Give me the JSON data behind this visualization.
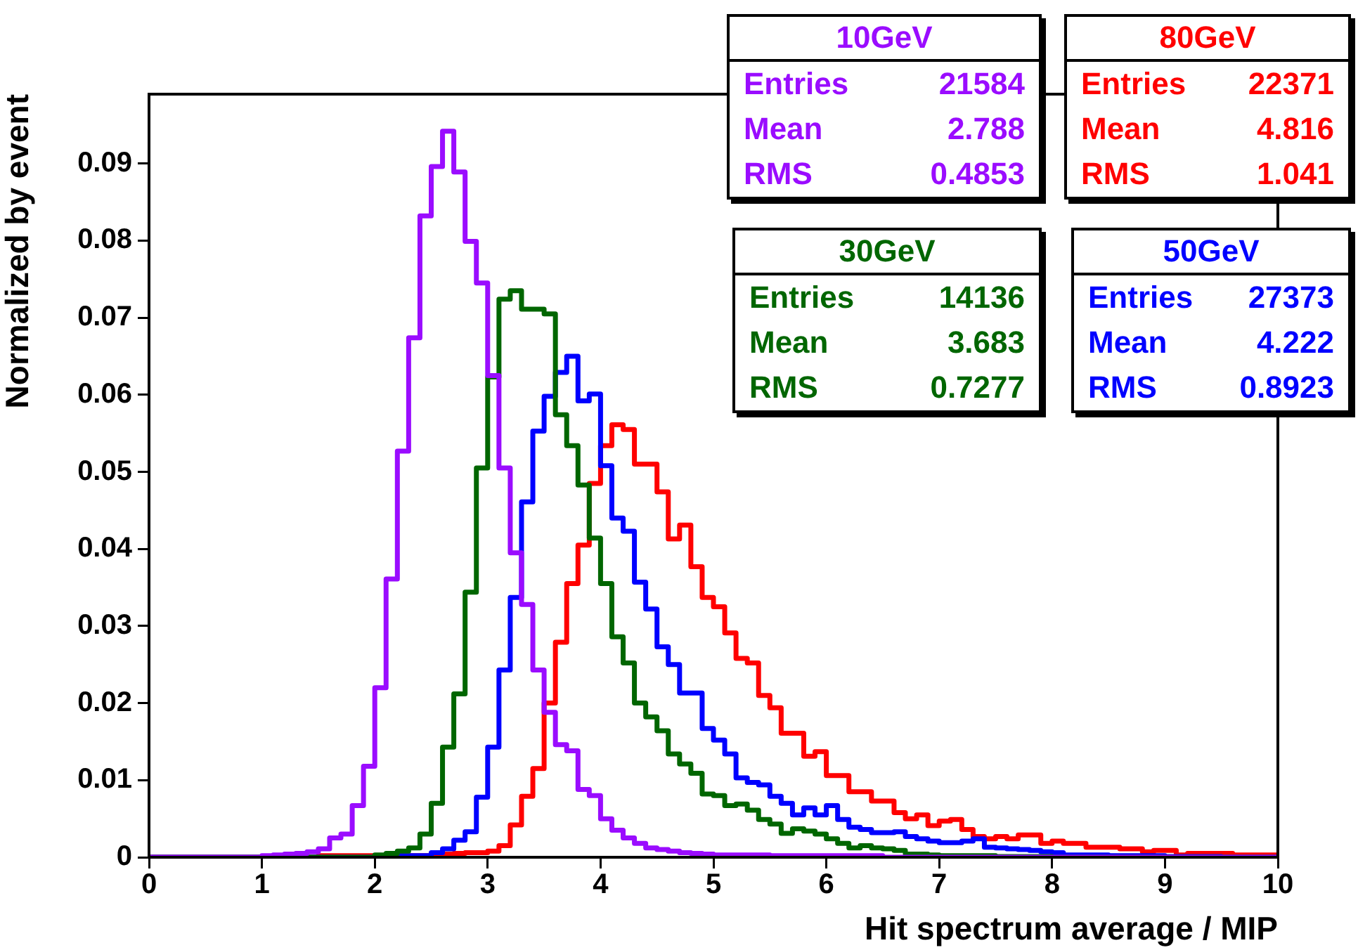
{
  "chart_data": {
    "type": "histogram",
    "xlabel": "Hit spectrum average / MIP",
    "ylabel": "Normalized by event",
    "bins": [
      0,
      0.1,
      0.2,
      0.3,
      0.4,
      0.5,
      0.6,
      0.7,
      0.8,
      0.9,
      1,
      1.1,
      1.2,
      1.3,
      1.4,
      1.5,
      1.6,
      1.7,
      1.8,
      1.9,
      2,
      2.1,
      2.2,
      2.3,
      2.4,
      2.5,
      2.6,
      2.7,
      2.8,
      2.9,
      3,
      3.1,
      3.2,
      3.3,
      3.4,
      3.5,
      3.6,
      3.7,
      3.8,
      3.9,
      4,
      4.1,
      4.2,
      4.3,
      4.4,
      4.5,
      4.6,
      4.7,
      4.8,
      4.9,
      5,
      5.1,
      5.2,
      5.3,
      5.4,
      5.5,
      5.6,
      5.7,
      5.8,
      5.9,
      6,
      6.1,
      6.2,
      6.3,
      6.4,
      6.5,
      6.6,
      6.7,
      6.8,
      6.9,
      7,
      7.1,
      7.2,
      7.3,
      7.4,
      7.5,
      7.6,
      7.7,
      7.8,
      7.9,
      8,
      8.1,
      8.2,
      8.3,
      8.4,
      8.5,
      8.6,
      8.7,
      8.8,
      8.9,
      9,
      9.1,
      9.2,
      9.3,
      9.4,
      9.5,
      9.6,
      9.7,
      9.8,
      9.9,
      10
    ],
    "series": [
      {
        "name": "10GeV",
        "color": "#9a0cff",
        "values": [
          0,
          0,
          0,
          0,
          0,
          0,
          0,
          0,
          0,
          0,
          0.0002,
          0.0003,
          0.0004,
          0.0005,
          0.0007,
          0.0011,
          0.0025,
          0.003,
          0.0067,
          0.0118,
          0.022,
          0.0361,
          0.0527,
          0.0674,
          0.0832,
          0.0896,
          0.0942,
          0.0889,
          0.0799,
          0.0745,
          0.0625,
          0.0505,
          0.0395,
          0.0328,
          0.0243,
          0.0188,
          0.0146,
          0.0138,
          0.0088,
          0.008,
          0.005,
          0.0035,
          0.0025,
          0.0018,
          0.0012,
          0.001,
          0.0008,
          0.0006,
          0.0005,
          0.0004,
          0.0003,
          0.0003,
          0.0003,
          0.0003,
          0.0003,
          0.0002,
          0.0002,
          0.0002,
          0.0002,
          0.0002,
          0.0002,
          0.0002,
          0.0002,
          0.0002,
          0.0002,
          0,
          0,
          0,
          0,
          0,
          0,
          0,
          0,
          0,
          0,
          0,
          0,
          0,
          0,
          0,
          0,
          0,
          0,
          0,
          0,
          0,
          0,
          0,
          0,
          0,
          0,
          0,
          0,
          0,
          0,
          0,
          0,
          0,
          0,
          0
        ]
      },
      {
        "name": "30GeV",
        "color": "#006600",
        "values": [
          0,
          0,
          0,
          0,
          0,
          0,
          0,
          0,
          0,
          0,
          0,
          0,
          0,
          0,
          0,
          0,
          0,
          0,
          0,
          0,
          0.0003,
          0.0005,
          0.0008,
          0.0012,
          0.003,
          0.007,
          0.0143,
          0.0212,
          0.0344,
          0.0505,
          0.0623,
          0.0724,
          0.0735,
          0.0711,
          0.0711,
          0.0705,
          0.0574,
          0.0534,
          0.0483,
          0.0414,
          0.0355,
          0.0286,
          0.0252,
          0.02,
          0.0182,
          0.0164,
          0.0134,
          0.0121,
          0.0109,
          0.0082,
          0.008,
          0.0067,
          0.0069,
          0.0061,
          0.0049,
          0.0043,
          0.0031,
          0.0037,
          0.0034,
          0.003,
          0.0024,
          0.0018,
          0.0012,
          0.0015,
          0.0012,
          0.0011,
          0.0009,
          0.0004,
          0.0004,
          0.0003,
          0.0002,
          0.0002,
          0.0002,
          0.0002,
          0.0002,
          0.0001,
          0.0001,
          0.0001,
          0.0001,
          0.0001,
          0,
          0,
          0,
          0,
          0,
          0,
          0,
          0,
          0,
          0,
          0,
          0,
          0,
          0,
          0,
          0,
          0,
          0,
          0,
          0
        ]
      },
      {
        "name": "50GeV",
        "color": "#0000ff",
        "values": [
          0,
          0,
          0,
          0,
          0,
          0,
          0,
          0,
          0,
          0,
          0,
          0,
          0,
          0,
          0,
          0,
          0,
          0,
          0,
          0,
          0.0002,
          0.0002,
          0.0002,
          0.0002,
          0.0002,
          0.0006,
          0.0011,
          0.0022,
          0.0033,
          0.0078,
          0.0143,
          0.0243,
          0.0337,
          0.0461,
          0.0553,
          0.0598,
          0.0629,
          0.065,
          0.0592,
          0.0601,
          0.0508,
          0.044,
          0.0423,
          0.0357,
          0.0322,
          0.0273,
          0.025,
          0.0213,
          0.0213,
          0.0167,
          0.0152,
          0.0134,
          0.0103,
          0.0097,
          0.0094,
          0.0079,
          0.007,
          0.0055,
          0.0064,
          0.0055,
          0.0067,
          0.0049,
          0.0039,
          0.0036,
          0.0032,
          0.0032,
          0.0033,
          0.0027,
          0.0024,
          0.0021,
          0.0019,
          0.0019,
          0.0021,
          0.0024,
          0.0013,
          0.0012,
          0.0011,
          0.001,
          0.0009,
          0.0007,
          0.0006,
          0.0003,
          0.0003,
          0.0003,
          0.0003,
          0.0002,
          0.0002,
          0.0002,
          0.0002,
          0.0002,
          0.0001,
          0.0001,
          0.0001,
          0.0001,
          0.0001,
          0,
          0,
          0,
          0,
          0
        ]
      },
      {
        "name": "80GeV",
        "color": "#ff0000",
        "values": [
          0,
          0,
          0,
          0,
          0,
          0,
          0,
          0,
          0,
          0,
          0,
          0,
          0,
          0,
          0,
          0.0002,
          0.0002,
          0.0002,
          0.0002,
          0.0002,
          0.0002,
          0.0002,
          0.0002,
          0.0002,
          0.0002,
          0.0003,
          0.0004,
          0.0005,
          0.0006,
          0.0006,
          0.0008,
          0.0015,
          0.0042,
          0.0079,
          0.0115,
          0.02,
          0.0279,
          0.0355,
          0.0405,
          0.0485,
          0.0534,
          0.0561,
          0.0555,
          0.051,
          0.051,
          0.0474,
          0.0413,
          0.0431,
          0.0377,
          0.0337,
          0.0325,
          0.0291,
          0.0258,
          0.0252,
          0.021,
          0.0194,
          0.0161,
          0.0161,
          0.0131,
          0.0137,
          0.0106,
          0.0106,
          0.0085,
          0.0085,
          0.0073,
          0.0073,
          0.0058,
          0.005,
          0.0055,
          0.0041,
          0.0047,
          0.0049,
          0.0036,
          0.0027,
          0.0024,
          0.0027,
          0.0024,
          0.0029,
          0.0029,
          0.0018,
          0.0021,
          0.0018,
          0.0018,
          0.0013,
          0.0013,
          0.0013,
          0.0011,
          0.0011,
          0.0007,
          0.0009,
          0.0009,
          0.0003,
          0.0005,
          0.0005,
          0.0005,
          0.0005,
          0.0003,
          0.0003,
          0.0003,
          0.0003
        ]
      }
    ],
    "annotations": [
      "Entries 21584",
      "Mean 2.788",
      "RMS 0.4853",
      "Entries 14136",
      "Mean 3.683",
      "RMS 0.7277",
      "Entries 27373",
      "Mean 4.222",
      "RMS 0.8923",
      "Entries 22371",
      "Mean 4.816",
      "RMS 1.041"
    ],
    "xlim": [
      0,
      10
    ],
    "xticks": [
      0,
      1,
      2,
      3,
      4,
      5,
      6,
      7,
      8,
      9,
      10
    ],
    "ylim": [
      0,
      0.099
    ],
    "yticks": [
      0,
      0.01,
      0.02,
      0.03,
      0.04,
      0.05,
      0.06,
      0.07,
      0.08,
      0.09
    ]
  }
}
